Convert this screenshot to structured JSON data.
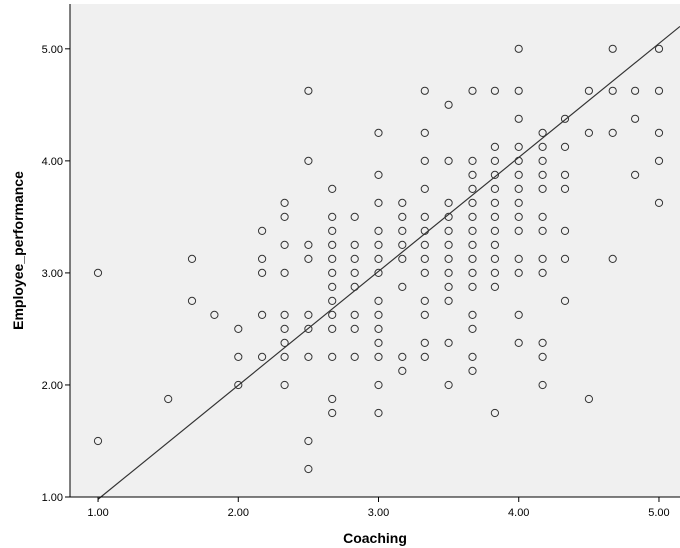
{
  "chart_data": {
    "type": "scatter",
    "xlabel": "Coaching",
    "ylabel": "Employee_performance",
    "xlim": [
      0.8,
      5.15
    ],
    "ylim": [
      1.0,
      5.4
    ],
    "xticks": [
      1.0,
      2.0,
      3.0,
      4.0,
      5.0
    ],
    "yticks": [
      1.0,
      2.0,
      3.0,
      4.0,
      5.0
    ],
    "x_tick_labels": [
      "1.00",
      "2.00",
      "3.00",
      "4.00",
      "5.00"
    ],
    "y_tick_labels": [
      "1.00",
      "2.00",
      "3.00",
      "4.00",
      "5.00"
    ],
    "grid": false,
    "legend": "none",
    "colors": {
      "plot_background": "#f0f0f0",
      "marker_stroke": "#333333",
      "fit_line": "#333333",
      "axis": "#000000"
    },
    "fit_line": {
      "x": [
        1.0,
        5.15
      ],
      "y": [
        0.98,
        5.2
      ]
    },
    "points": [
      [
        1.0,
        3.0
      ],
      [
        1.0,
        1.5
      ],
      [
        1.5,
        1.875
      ],
      [
        1.67,
        3.125
      ],
      [
        1.67,
        2.75
      ],
      [
        1.83,
        2.625
      ],
      [
        2.0,
        2.5
      ],
      [
        2.0,
        2.25
      ],
      [
        2.0,
        2.0
      ],
      [
        2.17,
        3.375
      ],
      [
        2.17,
        3.125
      ],
      [
        2.17,
        3.0
      ],
      [
        2.17,
        2.625
      ],
      [
        2.17,
        2.25
      ],
      [
        2.33,
        3.625
      ],
      [
        2.33,
        3.5
      ],
      [
        2.33,
        3.25
      ],
      [
        2.33,
        3.0
      ],
      [
        2.33,
        2.625
      ],
      [
        2.33,
        2.5
      ],
      [
        2.33,
        2.375
      ],
      [
        2.33,
        2.25
      ],
      [
        2.33,
        2.0
      ],
      [
        2.5,
        4.625
      ],
      [
        2.5,
        4.0
      ],
      [
        2.5,
        3.25
      ],
      [
        2.5,
        3.125
      ],
      [
        2.5,
        2.625
      ],
      [
        2.5,
        2.5
      ],
      [
        2.5,
        2.25
      ],
      [
        2.5,
        1.5
      ],
      [
        2.5,
        1.25
      ],
      [
        2.67,
        3.75
      ],
      [
        2.67,
        3.5
      ],
      [
        2.67,
        3.375
      ],
      [
        2.67,
        3.25
      ],
      [
        2.67,
        3.125
      ],
      [
        2.67,
        3.0
      ],
      [
        2.67,
        2.875
      ],
      [
        2.67,
        2.75
      ],
      [
        2.67,
        2.625
      ],
      [
        2.67,
        2.5
      ],
      [
        2.67,
        2.25
      ],
      [
        2.67,
        1.875
      ],
      [
        2.67,
        1.75
      ],
      [
        2.83,
        3.5
      ],
      [
        2.83,
        3.25
      ],
      [
        2.83,
        3.125
      ],
      [
        2.83,
        3.0
      ],
      [
        2.83,
        2.875
      ],
      [
        2.83,
        2.625
      ],
      [
        2.83,
        2.5
      ],
      [
        2.83,
        2.25
      ],
      [
        3.0,
        4.25
      ],
      [
        3.0,
        3.875
      ],
      [
        3.0,
        3.625
      ],
      [
        3.0,
        3.375
      ],
      [
        3.0,
        3.25
      ],
      [
        3.0,
        3.125
      ],
      [
        3.0,
        3.0
      ],
      [
        3.0,
        2.75
      ],
      [
        3.0,
        2.625
      ],
      [
        3.0,
        2.5
      ],
      [
        3.0,
        2.375
      ],
      [
        3.0,
        2.25
      ],
      [
        3.0,
        2.0
      ],
      [
        3.0,
        1.75
      ],
      [
        3.17,
        3.625
      ],
      [
        3.17,
        3.5
      ],
      [
        3.17,
        3.375
      ],
      [
        3.17,
        3.25
      ],
      [
        3.17,
        3.125
      ],
      [
        3.17,
        2.875
      ],
      [
        3.17,
        2.25
      ],
      [
        3.17,
        2.125
      ],
      [
        3.33,
        4.625
      ],
      [
        3.33,
        4.25
      ],
      [
        3.33,
        4.0
      ],
      [
        3.33,
        3.75
      ],
      [
        3.33,
        3.5
      ],
      [
        3.33,
        3.375
      ],
      [
        3.33,
        3.25
      ],
      [
        3.33,
        3.125
      ],
      [
        3.33,
        3.0
      ],
      [
        3.33,
        2.75
      ],
      [
        3.33,
        2.625
      ],
      [
        3.33,
        2.375
      ],
      [
        3.33,
        2.25
      ],
      [
        3.5,
        4.5
      ],
      [
        3.5,
        4.0
      ],
      [
        3.5,
        3.625
      ],
      [
        3.5,
        3.5
      ],
      [
        3.5,
        3.375
      ],
      [
        3.5,
        3.25
      ],
      [
        3.5,
        3.125
      ],
      [
        3.5,
        3.0
      ],
      [
        3.5,
        2.875
      ],
      [
        3.5,
        2.75
      ],
      [
        3.5,
        2.375
      ],
      [
        3.5,
        2.0
      ],
      [
        3.67,
        4.625
      ],
      [
        3.67,
        4.0
      ],
      [
        3.67,
        3.875
      ],
      [
        3.67,
        3.75
      ],
      [
        3.67,
        3.625
      ],
      [
        3.67,
        3.5
      ],
      [
        3.67,
        3.375
      ],
      [
        3.67,
        3.25
      ],
      [
        3.67,
        3.125
      ],
      [
        3.67,
        3.0
      ],
      [
        3.67,
        2.875
      ],
      [
        3.67,
        2.625
      ],
      [
        3.67,
        2.5
      ],
      [
        3.67,
        2.25
      ],
      [
        3.67,
        2.125
      ],
      [
        3.83,
        4.625
      ],
      [
        3.83,
        4.125
      ],
      [
        3.83,
        4.0
      ],
      [
        3.83,
        3.875
      ],
      [
        3.83,
        3.75
      ],
      [
        3.83,
        3.625
      ],
      [
        3.83,
        3.5
      ],
      [
        3.83,
        3.375
      ],
      [
        3.83,
        3.25
      ],
      [
        3.83,
        3.125
      ],
      [
        3.83,
        3.0
      ],
      [
        3.83,
        2.875
      ],
      [
        3.83,
        1.75
      ],
      [
        4.0,
        5.0
      ],
      [
        4.0,
        4.625
      ],
      [
        4.0,
        4.375
      ],
      [
        4.0,
        4.125
      ],
      [
        4.0,
        4.0
      ],
      [
        4.0,
        3.875
      ],
      [
        4.0,
        3.75
      ],
      [
        4.0,
        3.625
      ],
      [
        4.0,
        3.5
      ],
      [
        4.0,
        3.375
      ],
      [
        4.0,
        3.125
      ],
      [
        4.0,
        3.0
      ],
      [
        4.0,
        2.625
      ],
      [
        4.0,
        2.375
      ],
      [
        4.17,
        4.25
      ],
      [
        4.17,
        4.125
      ],
      [
        4.17,
        4.0
      ],
      [
        4.17,
        3.875
      ],
      [
        4.17,
        3.75
      ],
      [
        4.17,
        3.5
      ],
      [
        4.17,
        3.375
      ],
      [
        4.17,
        3.125
      ],
      [
        4.17,
        3.0
      ],
      [
        4.17,
        2.375
      ],
      [
        4.17,
        2.25
      ],
      [
        4.17,
        2.0
      ],
      [
        4.33,
        4.375
      ],
      [
        4.33,
        4.125
      ],
      [
        4.33,
        3.875
      ],
      [
        4.33,
        3.75
      ],
      [
        4.33,
        3.375
      ],
      [
        4.33,
        3.125
      ],
      [
        4.33,
        2.75
      ],
      [
        4.5,
        4.625
      ],
      [
        4.5,
        4.25
      ],
      [
        4.5,
        1.875
      ],
      [
        4.67,
        5.0
      ],
      [
        4.67,
        4.625
      ],
      [
        4.67,
        4.25
      ],
      [
        4.67,
        3.125
      ],
      [
        4.83,
        4.625
      ],
      [
        4.83,
        4.375
      ],
      [
        4.83,
        3.875
      ],
      [
        5.0,
        5.0
      ],
      [
        5.0,
        4.625
      ],
      [
        5.0,
        4.25
      ],
      [
        5.0,
        4.0
      ],
      [
        5.0,
        3.625
      ]
    ]
  }
}
